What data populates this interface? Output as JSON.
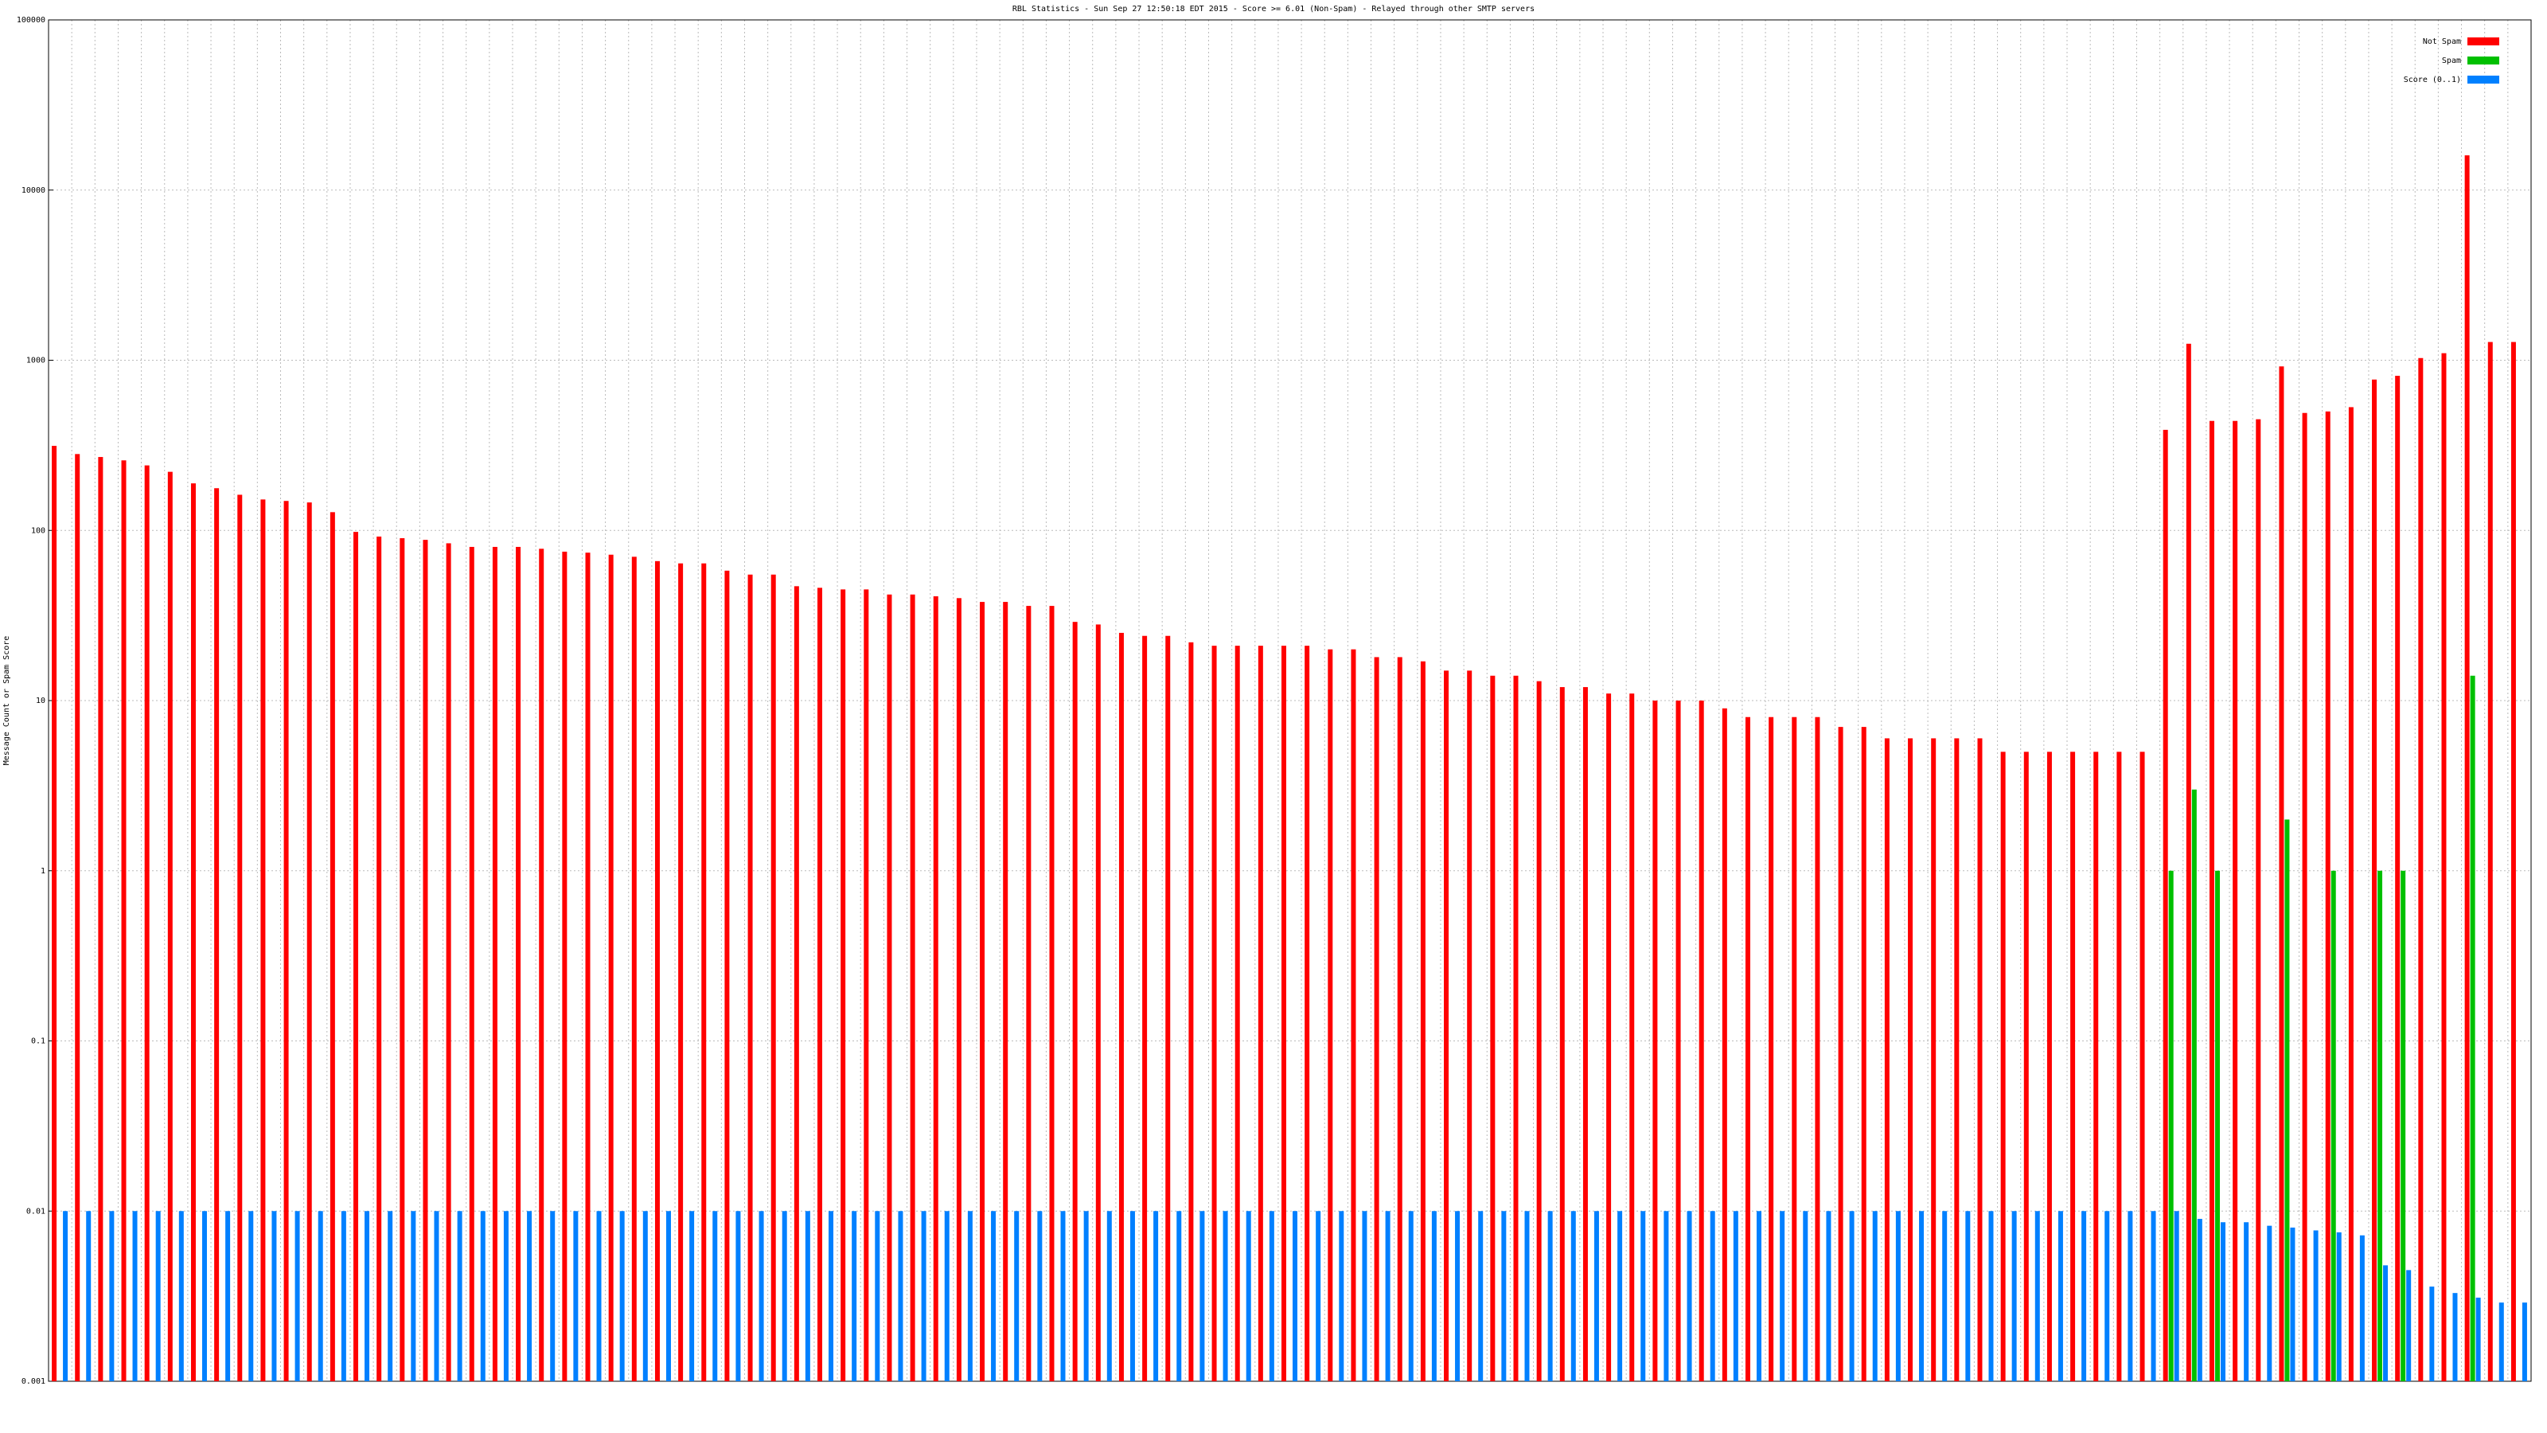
{
  "chart_data": {
    "type": "bar",
    "title": "RBL Statistics - Sun Sep 27 12:50:18 EDT 2015 - Score >= 6.01 (Non-Spam) - Relayed through other SMTP servers",
    "y_label": "Message Count or Spam Score",
    "log_y": true,
    "grid": true,
    "legend": "top-right",
    "ylim": [
      0.001,
      100000
    ],
    "yticks": [
      0.001,
      0.01,
      0.1,
      1,
      10,
      100,
      1000,
      10000,
      100000
    ],
    "categories": [
      null,
      null,
      null,
      null,
      null,
      null,
      null,
      null,
      null,
      null,
      null,
      null,
      null,
      null,
      null,
      null,
      null,
      null,
      null,
      null,
      null,
      null,
      null,
      null,
      null,
      null,
      null,
      null,
      null,
      null,
      null,
      null,
      null,
      null,
      null,
      null,
      null,
      null,
      null,
      null,
      null,
      null,
      null,
      null,
      null,
      null,
      null,
      null,
      null,
      null,
      null,
      null,
      null,
      null,
      null,
      null,
      null,
      null,
      null,
      null,
      null,
      null,
      null,
      null,
      null,
      null,
      null,
      null,
      null,
      null,
      null,
      null,
      null,
      null,
      null,
      null,
      null,
      null,
      null,
      null,
      null,
      null,
      null,
      null,
      null,
      null,
      null,
      null,
      null,
      null,
      null,
      null,
      null,
      null,
      null,
      null,
      null,
      null,
      null,
      null,
      null,
      null,
      null,
      null,
      null,
      null,
      null
    ],
    "series": [
      {
        "name": "Not Spam",
        "color": "#ff0000",
        "values": [
          314,
          281,
          270,
          258,
          241,
          221,
          189,
          177,
          162,
          152,
          149,
          146,
          128,
          98,
          92,
          90,
          88,
          84,
          80,
          80,
          80,
          78,
          75,
          74,
          72,
          70,
          66,
          64,
          64,
          58,
          55,
          55,
          47,
          46,
          45,
          45,
          42,
          42,
          41,
          40,
          38,
          38,
          36,
          36,
          29,
          28,
          25,
          24,
          24,
          22,
          21,
          21,
          21,
          21,
          21,
          20,
          20,
          18,
          18,
          17,
          15,
          15,
          14,
          14,
          13,
          12,
          12,
          11,
          11,
          10,
          10,
          10,
          9,
          8,
          8,
          8,
          8,
          7,
          7,
          6,
          6,
          6,
          6,
          6,
          5,
          5,
          5,
          5,
          5,
          5,
          5,
          390,
          1250,
          440,
          440,
          450,
          920,
          490,
          500,
          530,
          770,
          810,
          1030,
          1100,
          16000,
          1280,
          1280
        ]
      },
      {
        "name": "Spam",
        "color": "#00c000",
        "values": [
          null,
          null,
          null,
          null,
          null,
          null,
          null,
          null,
          null,
          null,
          null,
          null,
          null,
          null,
          null,
          null,
          null,
          null,
          null,
          null,
          null,
          null,
          null,
          null,
          null,
          null,
          null,
          null,
          null,
          null,
          null,
          null,
          null,
          null,
          null,
          null,
          null,
          null,
          null,
          null,
          null,
          null,
          null,
          null,
          null,
          null,
          null,
          null,
          null,
          null,
          null,
          null,
          null,
          null,
          null,
          null,
          null,
          null,
          null,
          null,
          null,
          null,
          null,
          null,
          null,
          null,
          null,
          null,
          null,
          null,
          null,
          null,
          null,
          null,
          null,
          null,
          null,
          null,
          null,
          null,
          null,
          null,
          null,
          null,
          null,
          null,
          null,
          null,
          null,
          null,
          null,
          1,
          3,
          1,
          null,
          null,
          2,
          null,
          1,
          null,
          1,
          1,
          null,
          null,
          14,
          null,
          null
        ]
      },
      {
        "name": "Score (0..1)",
        "color": "#0080ff",
        "values": [
          0.01,
          0.01,
          0.01,
          0.01,
          0.01,
          0.01,
          0.01,
          0.01,
          0.01,
          0.01,
          0.01,
          0.01,
          0.01,
          0.01,
          0.01,
          0.01,
          0.01,
          0.01,
          0.01,
          0.01,
          0.01,
          0.01,
          0.01,
          0.01,
          0.01,
          0.01,
          0.01,
          0.01,
          0.01,
          0.01,
          0.01,
          0.01,
          0.01,
          0.01,
          0.01,
          0.01,
          0.01,
          0.01,
          0.01,
          0.01,
          0.01,
          0.01,
          0.01,
          0.01,
          0.01,
          0.01,
          0.01,
          0.01,
          0.01,
          0.01,
          0.01,
          0.01,
          0.01,
          0.01,
          0.01,
          0.01,
          0.01,
          0.01,
          0.01,
          0.01,
          0.01,
          0.01,
          0.01,
          0.01,
          0.01,
          0.01,
          0.01,
          0.01,
          0.01,
          0.01,
          0.01,
          0.01,
          0.01,
          0.01,
          0.01,
          0.01,
          0.01,
          0.01,
          0.01,
          0.01,
          0.01,
          0.01,
          0.01,
          0.01,
          0.01,
          0.01,
          0.01,
          0.01,
          0.01,
          0.01,
          0.01,
          0.01,
          0.009,
          0.0086,
          0.0086,
          0.0082,
          0.008,
          0.0077,
          0.0075,
          0.0072,
          0.0048,
          0.0045,
          0.0036,
          0.0033,
          0.0031,
          0.0029,
          0.0029
        ]
      }
    ]
  }
}
